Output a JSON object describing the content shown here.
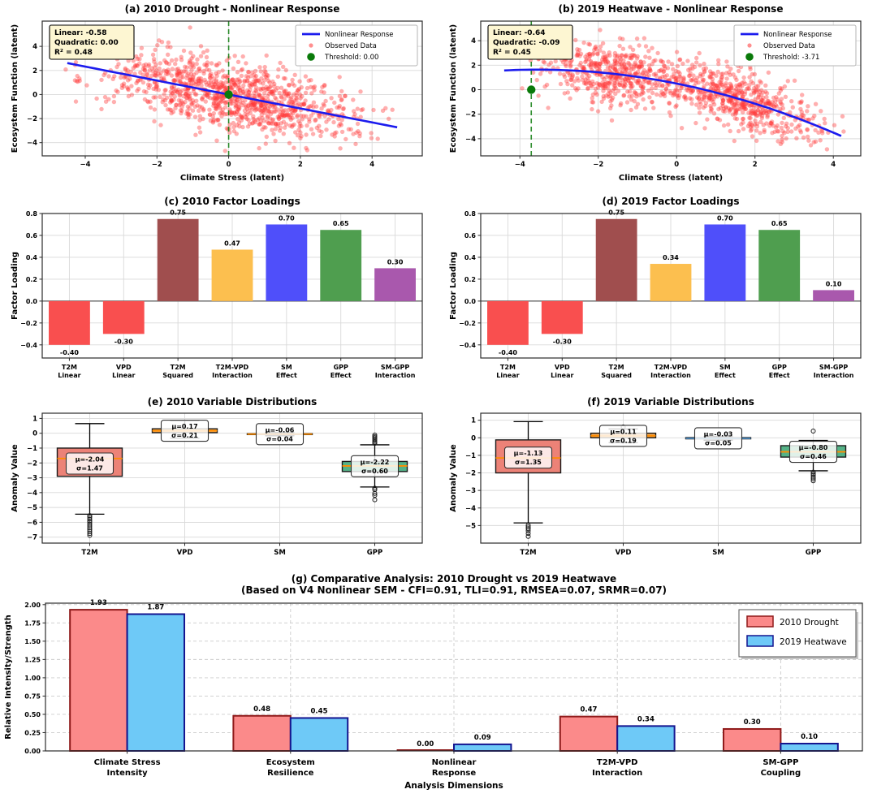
{
  "chart_data": [
    {
      "id": "a",
      "type": "scatter",
      "title": "(a) 2010 Drought - Nonlinear Response",
      "xlabel": "Climate Stress (latent)",
      "ylabel": "Ecosystem Function (latent)",
      "xlim": [
        -5.2,
        5.4
      ],
      "ylim": [
        -5.1,
        6.1
      ],
      "xticks": [
        -4,
        -2,
        0,
        2,
        4
      ],
      "yticks": [
        -4,
        -2,
        0,
        2,
        4
      ],
      "tick_decimals": 0,
      "annotation_lines": [
        "Linear: -0.58",
        "Quadratic: 0.00",
        "R² = 0.48"
      ],
      "legend": [
        {
          "label": "Nonlinear Response",
          "marker": "line",
          "color": "#1b1bee"
        },
        {
          "label": "Observed Data",
          "marker": "dot-small",
          "color": "#ff4545"
        },
        {
          "label": "Threshold: 0.00",
          "marker": "dot-large",
          "color": "#0a7a0a"
        }
      ],
      "curve": {
        "intercept": 0.0,
        "linear": -0.58,
        "quadratic": 0.0,
        "x_start": -4.5,
        "x_end": 4.7,
        "color": "#1b1bee"
      },
      "threshold": {
        "x": 0.0,
        "y": 0.0,
        "color": "#0a7a0a"
      },
      "scatter": {
        "seed": 20101,
        "n": 1100,
        "clusters": [
          {
            "weight": 1.0,
            "mean": 0.0,
            "sd": 1.85
          }
        ],
        "x_clip": [
          -4.55,
          4.65
        ],
        "noise_sd": 1.42,
        "y_clip": [
          -4.8,
          5.7
        ],
        "color": "#ff3838",
        "opacity": 0.4
      }
    },
    {
      "id": "b",
      "type": "scatter",
      "title": "(b) 2019 Heatwave - Nonlinear Response",
      "xlabel": "Climate Stress (latent)",
      "ylabel": "Ecosystem Function (latent)",
      "xlim": [
        -5.0,
        4.7
      ],
      "ylim": [
        -5.4,
        5.6
      ],
      "xticks": [
        -4,
        -2,
        0,
        2,
        4
      ],
      "yticks": [
        -4,
        -2,
        0,
        2,
        4
      ],
      "tick_decimals": 0,
      "annotation_lines": [
        "Linear: -0.64",
        "Quadratic: -0.09",
        "R² = 0.45"
      ],
      "legend": [
        {
          "label": "Nonlinear Response",
          "marker": "line",
          "color": "#1b1bee"
        },
        {
          "label": "Observed Data",
          "marker": "dot-small",
          "color": "#ff4545"
        },
        {
          "label": "Threshold: -3.71",
          "marker": "dot-large",
          "color": "#0a7a0a"
        }
      ],
      "curve": {
        "intercept": 0.5,
        "linear": -0.64,
        "quadratic": -0.09,
        "x_start": -4.4,
        "x_end": 4.2,
        "color": "#1b1bee"
      },
      "threshold": {
        "x": -3.71,
        "y": 0.0,
        "color": "#0a7a0a"
      },
      "scatter": {
        "seed": 20192,
        "n": 1100,
        "clusters": [
          {
            "weight": 0.45,
            "mean": -1.7,
            "sd": 0.95
          },
          {
            "weight": 0.55,
            "mean": 1.5,
            "sd": 1.05
          }
        ],
        "x_clip": [
          -4.35,
          4.3
        ],
        "noise_sd": 1.15,
        "y_clip": [
          -4.9,
          5.4
        ],
        "color": "#ff3838",
        "opacity": 0.4
      }
    },
    {
      "id": "c",
      "type": "bar",
      "title": "(c) 2010 Factor Loadings",
      "ylabel": "Factor Loading",
      "ylim": [
        -0.52,
        0.8
      ],
      "yticks": [
        -0.4,
        -0.2,
        0.0,
        0.2,
        0.4,
        0.6,
        0.8
      ],
      "tick_decimals": 1,
      "categories": [
        [
          "T2M",
          "Linear"
        ],
        [
          "VPD",
          "Linear"
        ],
        [
          "T2M",
          "Squared"
        ],
        [
          "T2M-VPD",
          "Interaction"
        ],
        [
          "SM",
          "Effect"
        ],
        [
          "GPP",
          "Effect"
        ],
        [
          "SM-GPP",
          "Interaction"
        ]
      ],
      "values": [
        -0.4,
        -0.3,
        0.75,
        0.47,
        0.7,
        0.65,
        0.3
      ],
      "value_labels": [
        "-0.40",
        "-0.30",
        "0.75",
        "0.47",
        "0.70",
        "0.65",
        "0.30"
      ],
      "bar_colors": [
        "#f94f4f",
        "#f94f4f",
        "#a04e4e",
        "#fcbf4f",
        "#4f4ffa",
        "#4f9e4f",
        "#a958ad"
      ]
    },
    {
      "id": "d",
      "type": "bar",
      "title": "(d) 2019 Factor Loadings",
      "ylabel": "Factor Loading",
      "ylim": [
        -0.52,
        0.8
      ],
      "yticks": [
        -0.4,
        -0.2,
        0.0,
        0.2,
        0.4,
        0.6,
        0.8
      ],
      "tick_decimals": 1,
      "categories": [
        [
          "T2M",
          "Linear"
        ],
        [
          "VPD",
          "Linear"
        ],
        [
          "T2M",
          "Squared"
        ],
        [
          "T2M-VPD",
          "Interaction"
        ],
        [
          "SM",
          "Effect"
        ],
        [
          "GPP",
          "Effect"
        ],
        [
          "SM-GPP",
          "Interaction"
        ]
      ],
      "values": [
        -0.4,
        -0.3,
        0.75,
        0.34,
        0.7,
        0.65,
        0.1
      ],
      "value_labels": [
        "-0.40",
        "-0.30",
        "0.75",
        "0.34",
        "0.70",
        "0.65",
        "0.10"
      ],
      "bar_colors": [
        "#f94f4f",
        "#f94f4f",
        "#a04e4e",
        "#fcbf4f",
        "#4f4ffa",
        "#4f9e4f",
        "#a958ad"
      ]
    },
    {
      "id": "e",
      "type": "box",
      "title": "(e) 2010 Variable Distributions",
      "ylabel": "Anomaly Value",
      "ylim": [
        -7.4,
        1.35
      ],
      "yticks": [
        1,
        0,
        -1,
        -2,
        -3,
        -4,
        -5,
        -6,
        -7
      ],
      "tick_decimals": 0,
      "categories": [
        "T2M",
        "VPD",
        "SM",
        "GPP"
      ],
      "boxes": [
        {
          "q1": -2.9,
          "median": -1.7,
          "q3": -1.0,
          "whisker_low": -5.45,
          "whisker_high": 0.65,
          "mean_label": "μ=-2.04",
          "sd_label": "σ=1.47",
          "mu": -2.04,
          "fill": "#ec8277",
          "outliers": [
            -5.55,
            -5.65,
            -5.78,
            -5.9,
            -6.0,
            -6.12,
            -6.25,
            -6.38,
            -6.5,
            -6.62,
            -6.75,
            -6.88
          ]
        },
        {
          "q1": 0.04,
          "median": 0.17,
          "q3": 0.3,
          "whisker_low": -0.33,
          "whisker_high": 0.85,
          "mean_label": "μ=0.17",
          "sd_label": "σ=0.21",
          "mu": 0.17,
          "fill": "#f7a94e",
          "outliers": []
        },
        {
          "q1": -0.09,
          "median": -0.06,
          "q3": -0.03,
          "whisker_low": -0.17,
          "whisker_high": 0.05,
          "mean_label": "μ=-0.06",
          "sd_label": "σ=0.04",
          "mu": -0.06,
          "fill": "#eceff3",
          "outliers": []
        },
        {
          "q1": -2.58,
          "median": -2.2,
          "q3": -1.9,
          "whisker_low": -3.62,
          "whisker_high": -0.78,
          "mean_label": "μ=-2.22",
          "sd_label": "σ=0.60",
          "mu": -2.22,
          "fill": "#55b287",
          "outliers": [
            -0.12,
            -0.22,
            -0.3,
            -0.4,
            -0.5,
            -0.6,
            -0.68,
            -3.7,
            -3.8,
            -4.05,
            -4.18,
            -4.48
          ]
        }
      ]
    },
    {
      "id": "f",
      "type": "box",
      "title": "(f) 2019 Variable Distributions",
      "ylabel": "Anomaly Value",
      "ylim": [
        -6.0,
        1.4
      ],
      "yticks": [
        1,
        0,
        -1,
        -2,
        -3,
        -4,
        -5
      ],
      "tick_decimals": 0,
      "categories": [
        "T2M",
        "VPD",
        "SM",
        "GPP"
      ],
      "boxes": [
        {
          "q1": -2.0,
          "median": -1.15,
          "q3": -0.12,
          "whisker_low": -4.85,
          "whisker_high": 0.92,
          "mean_label": "μ=-1.13",
          "sd_label": "σ=1.35",
          "mu": -1.13,
          "fill": "#ec8277",
          "outliers": [
            -4.98,
            -5.08,
            -5.18,
            -5.3,
            -5.45,
            -5.62
          ]
        },
        {
          "q1": 0.0,
          "median": 0.11,
          "q3": 0.26,
          "whisker_low": -0.28,
          "whisker_high": 0.5,
          "mean_label": "μ=0.11",
          "sd_label": "σ=0.19",
          "mu": 0.11,
          "fill": "#f7a94e",
          "outliers": [
            0.62
          ]
        },
        {
          "q1": -0.06,
          "median": -0.03,
          "q3": 0.01,
          "whisker_low": -0.14,
          "whisker_high": 0.08,
          "mean_label": "μ=-0.03",
          "sd_label": "σ=0.05",
          "mu": -0.03,
          "fill": "#7fb3d9",
          "median_color": "#4682b4",
          "outliers": []
        },
        {
          "q1": -1.1,
          "median": -0.8,
          "q3": -0.45,
          "whisker_low": -1.88,
          "whisker_high": -0.15,
          "mean_label": "μ=-0.80",
          "sd_label": "σ=0.46",
          "mu": -0.8,
          "fill": "#55b287",
          "outliers": [
            0.38,
            -1.96,
            -2.05,
            -2.14,
            -2.24,
            -2.34,
            -2.45
          ]
        }
      ]
    },
    {
      "id": "g",
      "type": "grouped_bar",
      "title": "(g) Comparative Analysis: 2010 Drought vs 2019 Heatwave",
      "subtitle": "(Based on V4 Nonlinear SEM - CFI=0.91, TLI=0.91, RMSEA=0.07, SRMR=0.07)",
      "xlabel": "Analysis Dimensions",
      "ylabel": "Relative Intensity/Strength",
      "ylim": [
        0,
        2.02
      ],
      "yticks": [
        0,
        0.25,
        0.5,
        0.75,
        1.0,
        1.25,
        1.5,
        1.75,
        2.0
      ],
      "tick_decimals": 2,
      "categories": [
        [
          "Climate Stress",
          "Intensity"
        ],
        [
          "Ecosystem",
          "Resilience"
        ],
        [
          "Nonlinear",
          "Response"
        ],
        [
          "T2M-VPD",
          "Interaction"
        ],
        [
          "SM-GPP",
          "Coupling"
        ]
      ],
      "series": [
        {
          "name": "2010 Drought",
          "values": [
            1.93,
            0.48,
            0.0,
            0.47,
            0.3
          ],
          "value_labels": [
            "1.93",
            "0.48",
            "0.00",
            "0.47",
            "0.30"
          ],
          "fill": "#fb8a8a",
          "edge": "#8f1a1a"
        },
        {
          "name": "2019 Heatwave",
          "values": [
            1.87,
            0.45,
            0.09,
            0.34,
            0.1
          ],
          "value_labels": [
            "1.87",
            "0.45",
            "0.09",
            "0.34",
            "0.10"
          ],
          "fill": "#6ec9f7",
          "edge": "#14148f"
        }
      ]
    }
  ],
  "style_colors": {
    "grid": "#d9d9d9",
    "grid_dashed": "#cccccc",
    "spine": "#2b2b2b",
    "zero_line": "#5a5a5a",
    "annotation_bg": "#fdf6d2",
    "median": "#ff8c00"
  }
}
